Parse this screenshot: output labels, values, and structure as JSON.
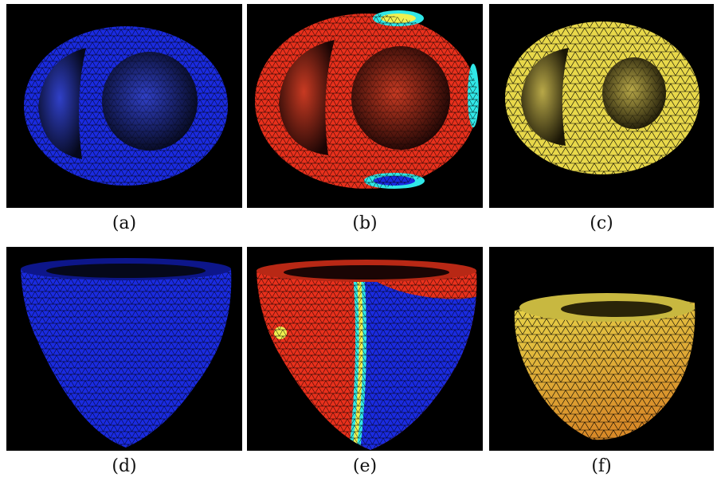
{
  "figure": {
    "panels": [
      {
        "id": "a",
        "caption": "(a)",
        "view": "top",
        "coloring": "uniform-blue"
      },
      {
        "id": "b",
        "caption": "(b)",
        "view": "top",
        "coloring": "red-with-blue-cyan-yellow-patches"
      },
      {
        "id": "c",
        "caption": "(c)",
        "view": "top",
        "coloring": "uniform-yellow"
      },
      {
        "id": "d",
        "caption": "(d)",
        "view": "side",
        "coloring": "uniform-blue"
      },
      {
        "id": "e",
        "caption": "(e)",
        "view": "side",
        "coloring": "red-left-blue-right"
      },
      {
        "id": "f",
        "caption": "(f)",
        "view": "side",
        "coloring": "yellow-orange"
      }
    ],
    "colors": {
      "background": "#000000",
      "mesh_blue": "#1a2be0",
      "mesh_red": "#e8301c",
      "mesh_yellow": "#e8d84a",
      "mesh_orange": "#e0a030",
      "boundary_cyan": "#30e8e8",
      "boundary_yellow": "#f0f050",
      "wire": "#000000"
    }
  }
}
